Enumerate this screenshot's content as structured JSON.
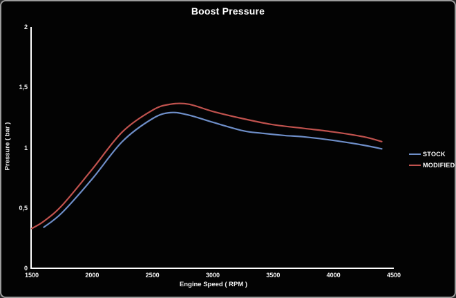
{
  "window": {
    "background_color": "#030303",
    "border_color": "#9c9c9c"
  },
  "chart_data": {
    "type": "line",
    "title": "Boost Pressure",
    "xlabel": "Engine Speed ( RPM )",
    "ylabel": "Pressure ( bar )",
    "xlim": [
      1500,
      4500
    ],
    "ylim": [
      0,
      2
    ],
    "grid": false,
    "legend_position": "right",
    "axis_color": "#ffffff",
    "x_ticks": [
      {
        "value": 1500,
        "label": "1500"
      },
      {
        "value": 2000,
        "label": "2000"
      },
      {
        "value": 2500,
        "label": "2500"
      },
      {
        "value": 3000,
        "label": "3000"
      },
      {
        "value": 3500,
        "label": "3500"
      },
      {
        "value": 4000,
        "label": "4000"
      },
      {
        "value": 4500,
        "label": "4500"
      }
    ],
    "y_ticks": [
      {
        "value": 0,
        "label": "0"
      },
      {
        "value": 0.5,
        "label": "0,5"
      },
      {
        "value": 1,
        "label": "1"
      },
      {
        "value": 1.5,
        "label": "1,5"
      },
      {
        "value": 2,
        "label": "2"
      }
    ],
    "series": [
      {
        "name": "STOCK",
        "color": "#6e8ec8",
        "points": [
          [
            1600,
            0.34
          ],
          [
            1750,
            0.46
          ],
          [
            2000,
            0.74
          ],
          [
            2250,
            1.05
          ],
          [
            2500,
            1.24
          ],
          [
            2650,
            1.29
          ],
          [
            2800,
            1.27
          ],
          [
            3000,
            1.21
          ],
          [
            3250,
            1.14
          ],
          [
            3400,
            1.12
          ],
          [
            3600,
            1.1
          ],
          [
            3750,
            1.09
          ],
          [
            4000,
            1.06
          ],
          [
            4250,
            1.02
          ],
          [
            4400,
            0.99
          ]
        ]
      },
      {
        "name": "MODIFIED",
        "color": "#c0524e",
        "points": [
          [
            1500,
            0.33
          ],
          [
            1600,
            0.39
          ],
          [
            1750,
            0.52
          ],
          [
            2000,
            0.82
          ],
          [
            2250,
            1.13
          ],
          [
            2500,
            1.31
          ],
          [
            2650,
            1.36
          ],
          [
            2800,
            1.36
          ],
          [
            3000,
            1.3
          ],
          [
            3250,
            1.24
          ],
          [
            3500,
            1.19
          ],
          [
            3750,
            1.16
          ],
          [
            4000,
            1.13
          ],
          [
            4250,
            1.09
          ],
          [
            4400,
            1.05
          ]
        ]
      }
    ]
  }
}
